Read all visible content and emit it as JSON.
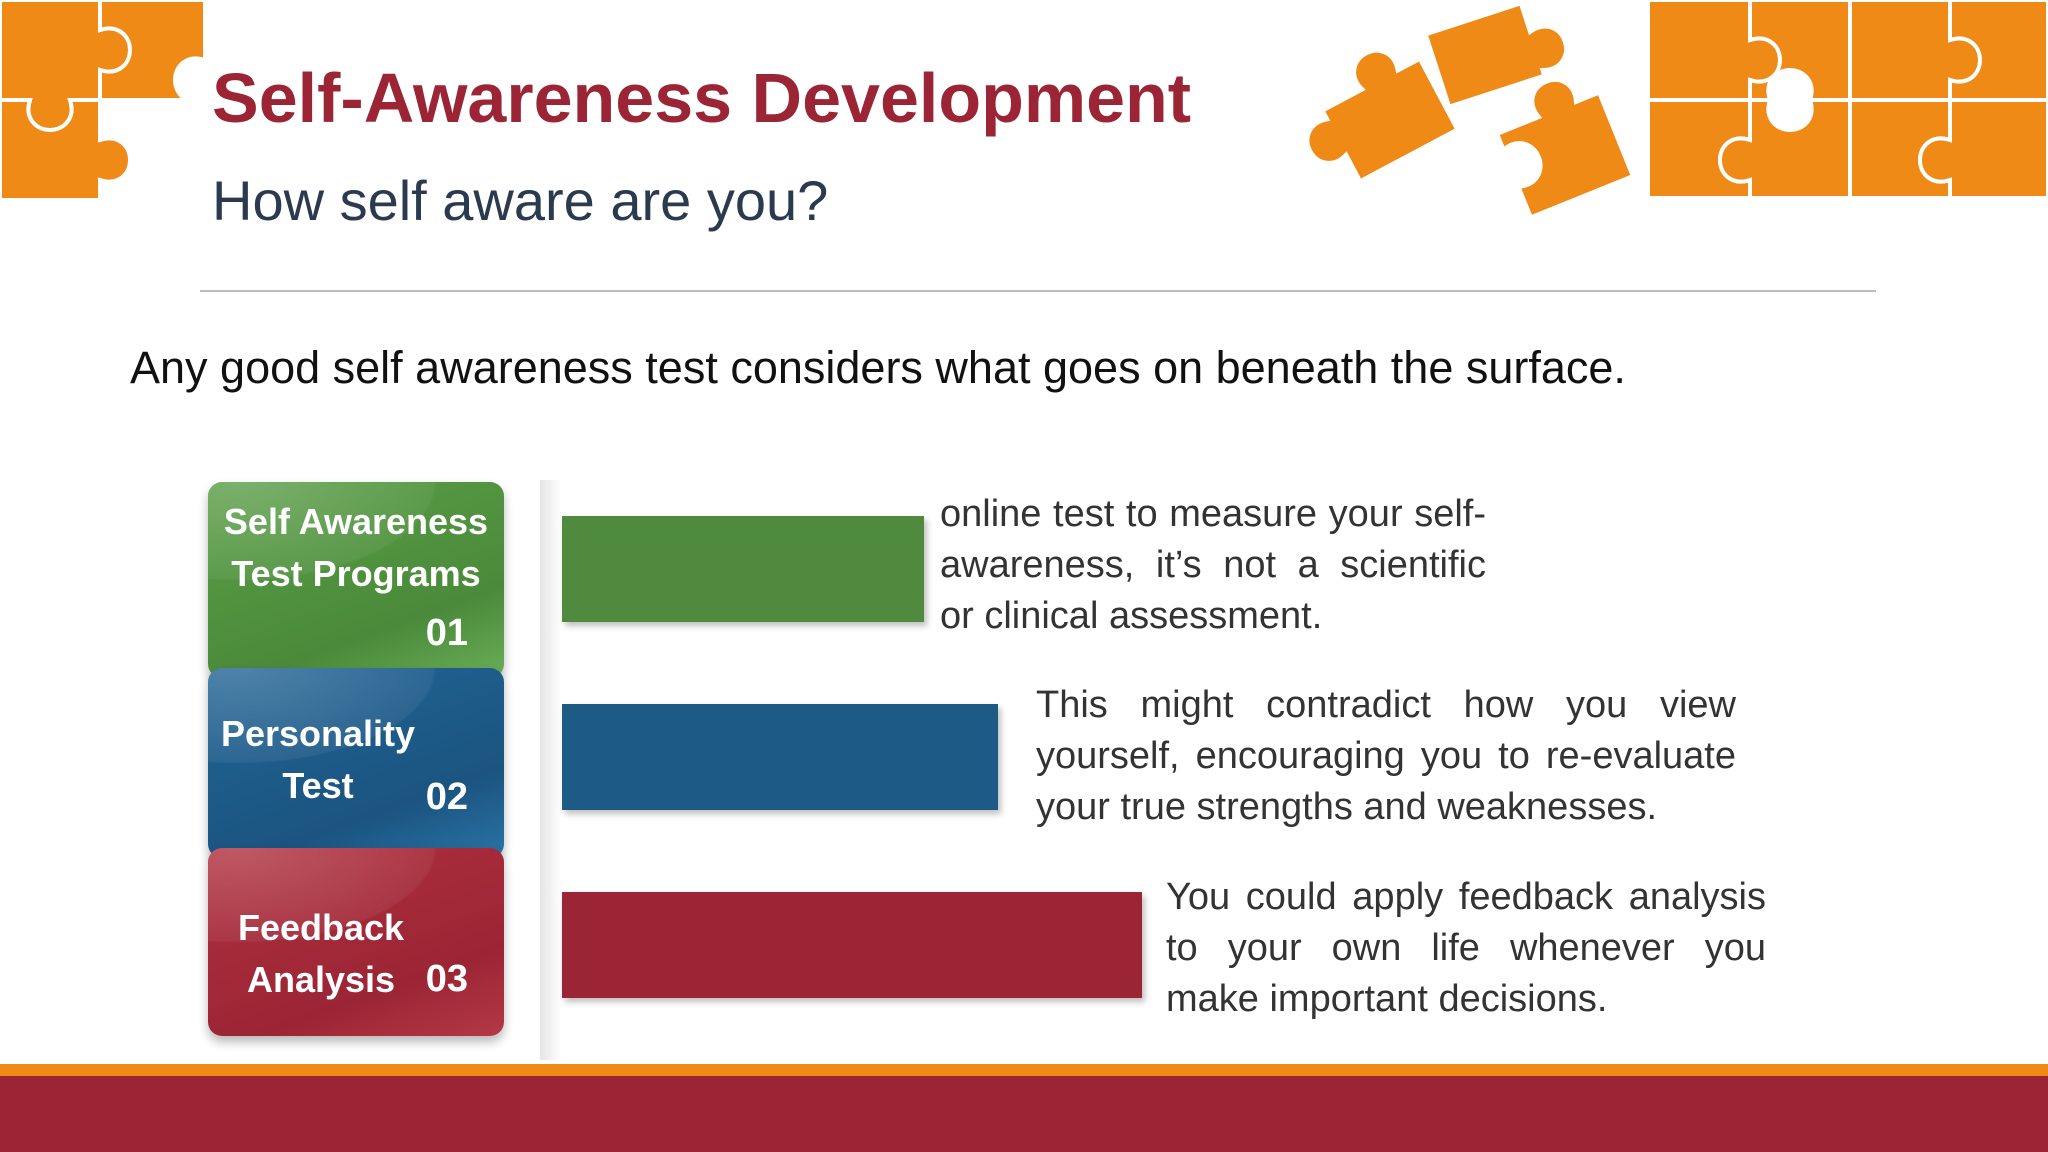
{
  "colors": {
    "title": "#9b2535",
    "accent_orange": "#f08a17",
    "green": "#4f8a3f",
    "blue": "#1e5a86",
    "red": "#9b2535"
  },
  "header": {
    "title": "Self-Awareness Development",
    "subtitle": "How self aware are you?"
  },
  "lead": "Any good self awareness test considers what goes on beneath the surface.",
  "items": [
    {
      "label_line1": "Self Awareness",
      "label_line2": "Test Programs",
      "number": "01",
      "description": "online test to measure your self-awareness, it’s not a scientific or clinical assessment."
    },
    {
      "label_line1": "Personality",
      "label_line2": "Test",
      "number": "02",
      "description": "This might contradict how you view yourself, encouraging you to re-evaluate your true strengths and weaknesses."
    },
    {
      "label_line1": "Feedback",
      "label_line2": "Analysis",
      "number": "03",
      "description": "You could apply feedback analysis to your own life whenever you make important decisions."
    }
  ],
  "icons": {
    "top_left": "puzzle-pieces-icon",
    "top_right": "puzzle-pieces-icon"
  }
}
